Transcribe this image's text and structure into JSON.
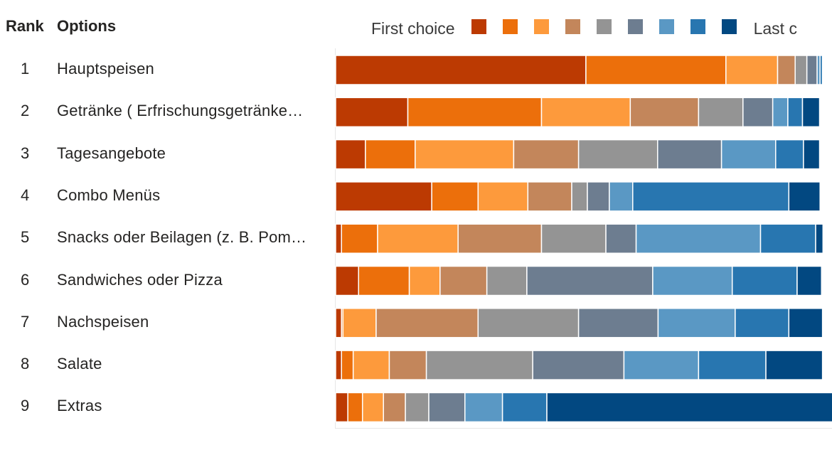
{
  "header": {
    "rank_label": "Rank",
    "options_label": "Options"
  },
  "legend": {
    "first_label": "First choice",
    "last_label": "Last c"
  },
  "colors": [
    "#bc3a02",
    "#ec6f0b",
    "#fd9a3c",
    "#c3865b",
    "#949494",
    "#6d7d90",
    "#5a98c4",
    "#2876b0",
    "#024881"
  ],
  "rows": [
    {
      "rank": "1",
      "label": "Hauptspeisen"
    },
    {
      "rank": "2",
      "label": "Getränke ( Erfrischungsgetränke…"
    },
    {
      "rank": "3",
      "label": "Tagesangebote"
    },
    {
      "rank": "4",
      "label": "Combo Menüs"
    },
    {
      "rank": "5",
      "label": "Snacks oder Beilagen (z. B. Pom…"
    },
    {
      "rank": "6",
      "label": "Sandwiches oder Pizza"
    },
    {
      "rank": "7",
      "label": "Nachspeisen"
    },
    {
      "rank": "8",
      "label": "Salate"
    },
    {
      "rank": "9",
      "label": "Extras"
    }
  ],
  "chart_data": {
    "type": "bar",
    "orientation": "horizontal",
    "stacked": "100%",
    "categories": [
      "Hauptspeisen",
      "Getränke ( Erfrischungsgetränke…",
      "Tagesangebote",
      "Combo Menüs",
      "Snacks oder Beilagen (z. B. Pom…",
      "Sandwiches oder Pizza",
      "Nachspeisen",
      "Salate",
      "Extras"
    ],
    "series": [
      {
        "values": [
          51.3,
          14.8,
          6.1,
          19.7,
          1.2,
          4.7,
          1.2,
          1.2,
          2.5
        ]
      },
      {
        "values": [
          28.7,
          27.4,
          10.2,
          9.5,
          7.4,
          10.4,
          0.3,
          2.4,
          3.0
        ]
      },
      {
        "values": [
          10.6,
          18.2,
          20.2,
          10.2,
          16.5,
          6.3,
          6.8,
          7.4,
          4.3
        ]
      },
      {
        "values": [
          3.6,
          14.0,
          13.3,
          9.0,
          17.1,
          9.6,
          20.9,
          7.6,
          4.5
        ]
      },
      {
        "values": [
          2.4,
          9.1,
          16.2,
          3.2,
          13.2,
          8.2,
          20.6,
          21.8,
          4.8
        ]
      },
      {
        "values": [
          2.1,
          6.1,
          13.1,
          4.5,
          6.2,
          25.8,
          16.3,
          18.7,
          7.4
        ]
      },
      {
        "values": [
          0.6,
          3.1,
          11.1,
          4.8,
          25.5,
          16.3,
          15.8,
          15.3,
          7.7
        ]
      },
      {
        "values": [
          0.5,
          3.0,
          5.7,
          32.0,
          11.3,
          13.3,
          11.0,
          13.8,
          9.1
        ]
      },
      {
        "values": [
          0.2,
          3.5,
          3.3,
          6.4,
          1.5,
          5.0,
          6.9,
          11.6,
          61.1
        ]
      }
    ],
    "xlim": [
      0,
      100
    ],
    "legend": "top-right"
  }
}
